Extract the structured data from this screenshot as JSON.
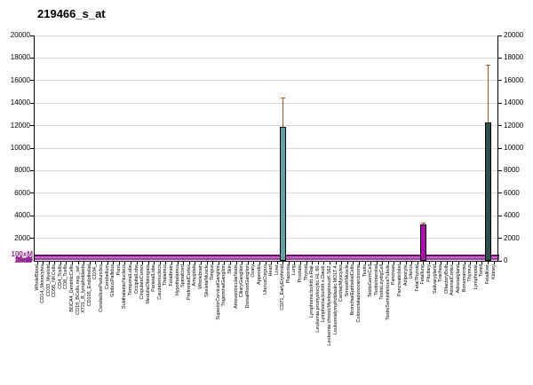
{
  "title": "219466_s_at",
  "y_axis": {
    "min": 0,
    "max": 20000,
    "step": 2000,
    "left_labels": [
      "20000",
      "18000",
      "16000",
      "14000",
      "12000",
      "10000",
      "8000",
      "6000",
      "4000",
      "2000"
    ],
    "right_labels": [
      "20000",
      "18000",
      "16000",
      "14000",
      "12000",
      "10000",
      "8000",
      "6000",
      "4000",
      "2000",
      "0"
    ]
  },
  "reference_lines": {
    "labels": [
      "100xM",
      "Med",
      "30xM",
      "10xM",
      "3xM"
    ],
    "label_color": "#932993",
    "lines": [
      {
        "name": "100xM",
        "value": 500,
        "color": "#6b116b",
        "thickness": 2
      },
      {
        "name": "30xM",
        "value": 280,
        "color": "#c36ac3",
        "thickness": 2
      },
      {
        "name": "10xM",
        "value": 130,
        "color": "#a93ba9",
        "thickness": 2
      }
    ]
  },
  "chart_data": {
    "type": "bar",
    "title": "219466_s_at",
    "xlabel": "",
    "ylabel": "",
    "ylim": [
      0,
      20000
    ],
    "grid": "horizontal",
    "gridline_color": "#d9d9d9",
    "error_color": "#a5581e",
    "categories": [
      "WholeBlood",
      "CD14_Monocytes",
      "CD33_Myeloid",
      "CD56_NKCells",
      "CD4_Tcells",
      "CD8_Tcells",
      "BDCA4_DentriticCells",
      "CD19_BCells.neg._sel.",
      "X721_B_lymphoblasts",
      "CD105_Endothelial",
      "CD34_",
      "CerebellumPeduncles",
      "Cerebellum",
      "GlobusPallidus",
      "Pons",
      "SubthalamicNucleus",
      "TemporalLobe",
      "OccipitalLobe",
      "CingulateCortex",
      "MedullaOblongata",
      "ParietalLobe",
      "Caudatenucleus",
      "Thalamus",
      "Fetalbrain",
      "Hypothalamus",
      "Spinalcord",
      "PrefrontalCortex",
      "Amygdala",
      "Wholebrain",
      "SkeletalMuscle",
      "Tongue",
      "SuperiorCervicalGanglion",
      "TrigeminalGanglion",
      "Skin",
      "AtrioventricularNode",
      "CiliaryGanglion",
      "DorsalRootGanglion",
      "Ovary",
      "Appendix",
      "UterusCorpus",
      "Heart",
      "Liver",
      "CD71_EarlyErythroid",
      "Placenta",
      "Lung",
      "Prostate",
      "Thyroid",
      "Lymphoma.burkitt.s.Raji.",
      "Leukemia.promyelocytic.HL.60.",
      "Lymphoma.burkitt.s.Daudi.",
      "Leukemia.chronicMyelogenousK.562.",
      "Leukemialymphoblastic.MOLT.4.",
      "CardiacMyocytes",
      "SmoothMuscle",
      "BronchialEpithelialCells",
      "Colorectaladenocarcinoma",
      "Testis",
      "TestisGermCell",
      "TestisInterstial",
      "TestisLeydigCell",
      "TestisSeminiferousTubule",
      "Pancreas",
      "PancreaticIslet",
      "Adipocyte",
      "Uterus",
      "FetalThyroid",
      "Fetallung",
      "Pituitary",
      "Salivarygland",
      "Trachea",
      "OlfactoryBulb",
      "AdrenalCortex",
      "Adrenalgland",
      "Bonemarrow",
      "Thymus",
      "Lymphnode",
      "Tonsil",
      "Fetalliver",
      "Kidney"
    ],
    "values": [
      0,
      0,
      0,
      0,
      0,
      0,
      0,
      0,
      0,
      0,
      0,
      0,
      0,
      0,
      0,
      0,
      0,
      0,
      0,
      0,
      0,
      0,
      0,
      0,
      0,
      0,
      0,
      0,
      0,
      0,
      0,
      0,
      0,
      0,
      0,
      0,
      0,
      0,
      0,
      0,
      0,
      0,
      11900,
      0,
      0,
      0,
      0,
      0,
      0,
      0,
      0,
      0,
      0,
      0,
      0,
      0,
      0,
      0,
      0,
      0,
      0,
      0,
      0,
      0,
      0,
      0,
      3200,
      0,
      0,
      0,
      0,
      0,
      0,
      0,
      0,
      0,
      0,
      12300,
      0
    ],
    "errors_high": [
      0,
      0,
      0,
      0,
      0,
      0,
      0,
      0,
      0,
      0,
      0,
      0,
      0,
      0,
      0,
      0,
      0,
      0,
      0,
      0,
      0,
      0,
      0,
      0,
      0,
      0,
      0,
      0,
      0,
      0,
      0,
      0,
      0,
      0,
      0,
      0,
      0,
      0,
      0,
      0,
      0,
      0,
      14500,
      0,
      0,
      0,
      0,
      0,
      0,
      0,
      0,
      0,
      0,
      0,
      0,
      0,
      0,
      0,
      0,
      0,
      0,
      0,
      0,
      0,
      0,
      0,
      3400,
      0,
      0,
      0,
      0,
      0,
      0,
      0,
      0,
      0,
      0,
      17400,
      0
    ],
    "bar_colors": {
      "CD71_EarlyErythroid": "#64a0a4",
      "Fetallung": "#aa11aa",
      "Fetalliver": "#2f4f4f"
    }
  }
}
